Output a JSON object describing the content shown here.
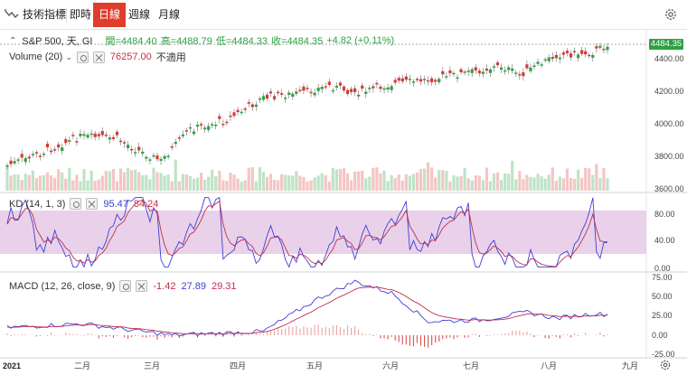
{
  "toolbar": {
    "indicators_label": "技術指標",
    "periods": [
      {
        "label": "即時",
        "active": false
      },
      {
        "label": "日線",
        "active": true
      },
      {
        "label": "週線",
        "active": false
      },
      {
        "label": "月線",
        "active": false
      }
    ],
    "settings_icon": "gear-icon",
    "indicator_icon": "indicator-wave-icon"
  },
  "main": {
    "symbol": "S&P 500, 天, GI",
    "open": "開=4484.40",
    "high": "高=4488.79",
    "low": "低=4484.33",
    "close": "收=4484.35",
    "change": "+4.82 (+0.11%)",
    "last_price": "4484.35",
    "up_color": "#2ea043",
    "down_color": "#d63b36",
    "y_ticks": [
      "4400.00",
      "4200.00",
      "4000.00",
      "3800.00",
      "3600.00"
    ],
    "volume_label": "Volume (20)",
    "volume_value": "76257.00",
    "volume_unit": "不適用"
  },
  "kd": {
    "label": "KD (14, 1, 3)",
    "k_value": "95.47",
    "d_value": "84.24",
    "k_color": "#3f3fd8",
    "d_color": "#c0304a",
    "band_color": "#e1c1e3",
    "y_ticks": [
      "80.00",
      "40.00",
      "0.00"
    ]
  },
  "macd": {
    "label": "MACD (12, 26, close, 9)",
    "hist_value": "-1.42",
    "macd_value": "27.89",
    "signal_value": "29.31",
    "y_ticks": [
      "75.00",
      "50.00",
      "25.00",
      "0.00",
      "-25.00"
    ]
  },
  "x_axis": {
    "labels": [
      "2021",
      "二月",
      "三月",
      "四月",
      "五月",
      "六月",
      "七月",
      "八月",
      "九月"
    ]
  }
}
